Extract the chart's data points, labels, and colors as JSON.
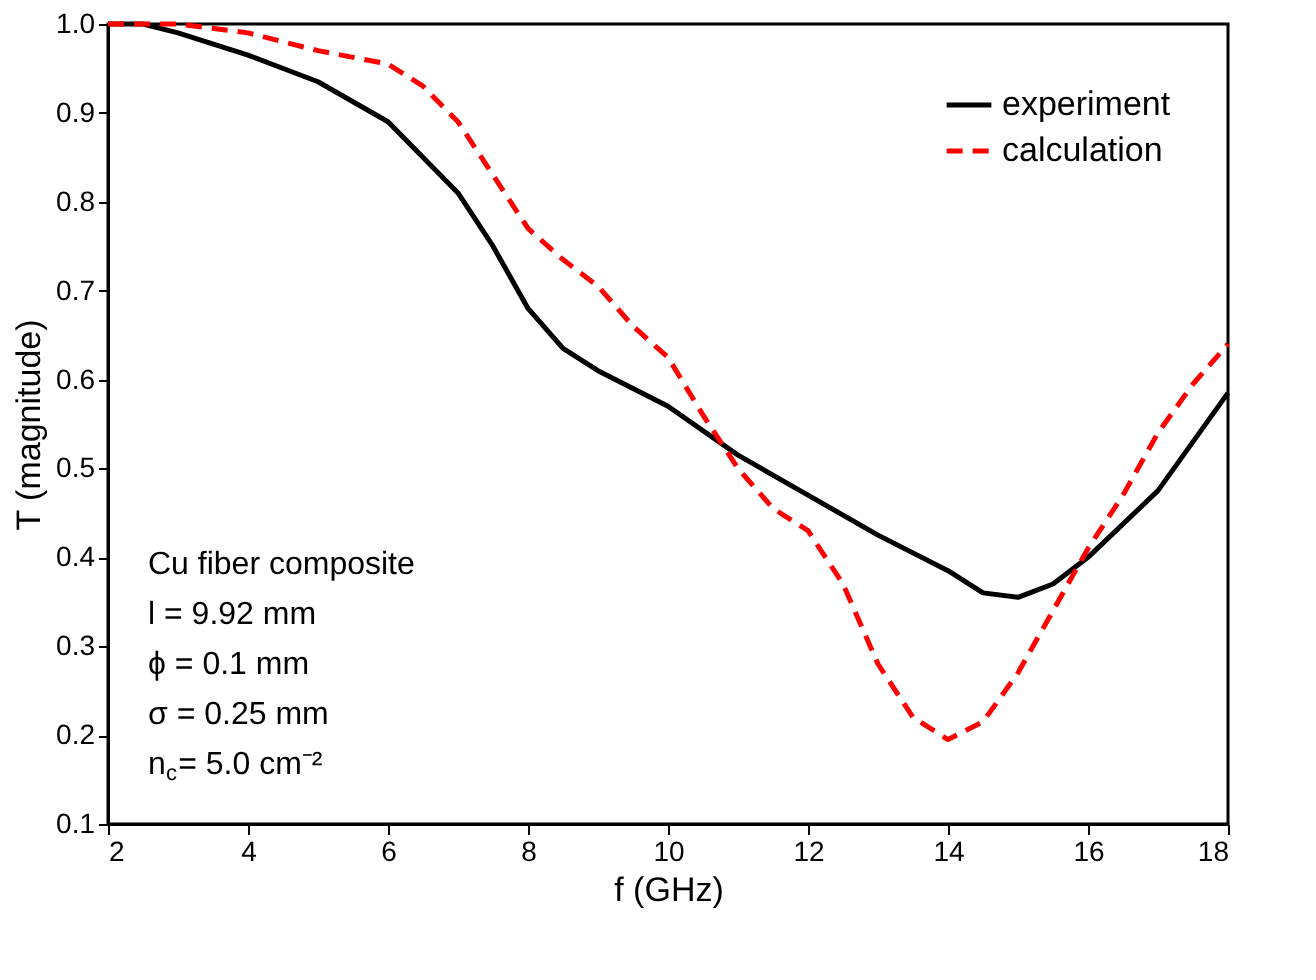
{
  "chart_data": {
    "type": "line",
    "xlabel": "f (GHz)",
    "ylabel": "T (magnitude)",
    "xlim": [
      2,
      18
    ],
    "xticks": [
      2,
      4,
      6,
      8,
      10,
      12,
      14,
      16,
      18
    ],
    "ylim": [
      0.1,
      1.0
    ],
    "yticks": [
      0.1,
      0.2,
      0.3,
      0.4,
      0.5,
      0.6,
      0.7,
      0.8,
      0.9,
      {
        "value": 1.0,
        "label": "1.0"
      }
    ],
    "grid": false,
    "legend": "top right",
    "series": [
      {
        "name": "experiment",
        "color": "#000000",
        "line_style": "solid",
        "x": [
          2,
          2.5,
          3,
          4,
          5,
          6,
          7,
          7.5,
          8,
          8.5,
          9,
          10,
          11,
          12,
          13,
          14,
          14.5,
          15,
          15.5,
          16,
          17,
          18
        ],
        "values": [
          1.0,
          1.0,
          0.99,
          0.965,
          0.935,
          0.89,
          0.81,
          0.75,
          0.68,
          0.635,
          0.61,
          0.57,
          0.515,
          0.47,
          0.425,
          0.385,
          0.36,
          0.355,
          0.37,
          0.4,
          0.475,
          0.585
        ]
      },
      {
        "name": "calculation",
        "color": "#ff0000",
        "line_style": "dashed",
        "x": [
          2,
          3,
          4,
          5,
          6,
          6.5,
          7,
          7.5,
          8,
          8.5,
          9,
          9.5,
          10,
          10.5,
          11,
          11.5,
          12,
          12.5,
          13,
          13.5,
          14,
          14.5,
          15,
          15.5,
          16,
          16.5,
          17,
          17.5,
          18
        ],
        "values": [
          1.0,
          1.0,
          0.99,
          0.97,
          0.955,
          0.93,
          0.89,
          0.83,
          0.77,
          0.735,
          0.705,
          0.66,
          0.625,
          0.56,
          0.5,
          0.455,
          0.43,
          0.37,
          0.28,
          0.22,
          0.195,
          0.215,
          0.27,
          0.34,
          0.41,
          0.47,
          0.54,
          0.595,
          0.64
        ]
      }
    ],
    "annotations": [
      "Cu fiber composite",
      "l = 9.92 mm",
      "ϕ = 0.1 mm",
      "σ = 0.25 mm",
      "n$_{c}$= 5.0 cm⁻²"
    ]
  }
}
